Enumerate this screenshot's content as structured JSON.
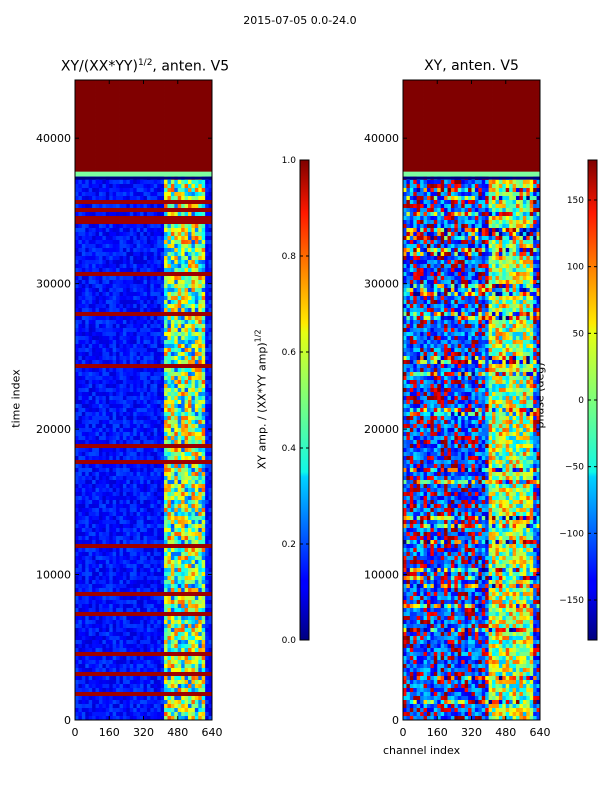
{
  "chart_data": [
    {
      "type": "heatmap",
      "title": "XY/(XX*YY)^1/2, anten. V5",
      "title_main": "XY/(XX*YY)",
      "title_sup": "1/2",
      "title_tail": ", anten. V5",
      "xlabel": "",
      "ylabel": "time index",
      "xlim": [
        0,
        640
      ],
      "ylim": [
        0,
        44000
      ],
      "xticks": [
        "0",
        "160",
        "320",
        "480",
        "640"
      ],
      "xtick_values": [
        0,
        160,
        320,
        480,
        640
      ],
      "yticks": [
        "0",
        "10000",
        "20000",
        "30000",
        "40000"
      ],
      "ytick_values": [
        0,
        10000,
        20000,
        30000,
        40000
      ],
      "colorbar": {
        "label": "XY amp. / (XX*YY amp)^1/2",
        "label_main": "XY amp. / (XX*YY amp)",
        "label_sup": "1/2",
        "range": [
          0.0,
          1.0
        ],
        "ticks": [
          "0.0",
          "0.2",
          "0.4",
          "0.6",
          "0.8",
          "1.0"
        ],
        "tick_values": [
          0.0,
          0.2,
          0.4,
          0.6,
          0.8,
          1.0
        ]
      }
    },
    {
      "type": "heatmap",
      "title": "XY, anten. V5",
      "xlabel": "channel index",
      "ylabel": "",
      "xlim": [
        0,
        640
      ],
      "ylim": [
        0,
        44000
      ],
      "xticks": [
        "0",
        "160",
        "320",
        "480",
        "640"
      ],
      "xtick_values": [
        0,
        160,
        320,
        480,
        640
      ],
      "yticks": [
        "0",
        "10000",
        "20000",
        "30000",
        "40000"
      ],
      "ytick_values": [
        0,
        10000,
        20000,
        30000,
        40000
      ],
      "colorbar": {
        "label": "phase (deg)",
        "range": [
          -180,
          180
        ],
        "ticks": [
          "−150",
          "−100",
          "−50",
          "0",
          "50",
          "100",
          "150"
        ],
        "tick_values": [
          -150,
          -100,
          -50,
          0,
          50,
          100,
          150
        ]
      }
    }
  ],
  "figure": {
    "suptitle": "2015-07-05 0.0-24.0"
  }
}
